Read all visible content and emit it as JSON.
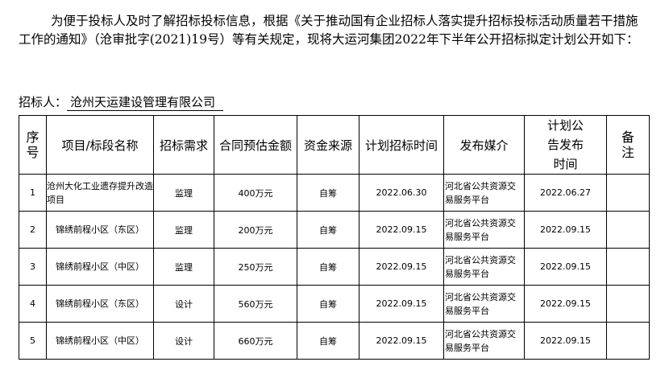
{
  "intro": "为便于投标人及时了解招标投标信息，根据《关于推动国有企业招标人落实提升招标投标活动质量若干措施工作的通知》（沧审批字(2021)19号）等有关规定，现将大运河集团2022年下半年公开招标拟定计划公开如下：",
  "tenderer": {
    "label": "招标人：",
    "value": "沧州天运建设管理有限公司"
  },
  "table": {
    "headers": [
      "序号",
      "项目/标段名称",
      "招标需求",
      "合同预估金额",
      "资金来源",
      "计划招标时间",
      "发布媒介",
      "计划公告发布时间",
      "备注"
    ],
    "rows": [
      {
        "no": "1",
        "name": "沧州大化工业遗存提升改造项目",
        "need": "监理",
        "amount": "400万元",
        "fund": "自筹",
        "plan": "2022.06.30",
        "media": "河北省公共资源交易服务平台",
        "notice": "2022.06.27",
        "remark": ""
      },
      {
        "no": "2",
        "name": "锦绣前程小区（东区）",
        "need": "监理",
        "amount": "200万元",
        "fund": "自筹",
        "plan": "2022.09.15",
        "media": "河北省公共资源交易服务平台",
        "notice": "2022.09.15",
        "remark": ""
      },
      {
        "no": "3",
        "name": "锦绣前程小区（中区）",
        "need": "监理",
        "amount": "250万元",
        "fund": "自筹",
        "plan": "2022.09.15",
        "media": "河北省公共资源交易服务平台",
        "notice": "2022.09.15",
        "remark": ""
      },
      {
        "no": "4",
        "name": "锦绣前程小区（东区）",
        "need": "设计",
        "amount": "560万元",
        "fund": "自筹",
        "plan": "2022.09.15",
        "media": "河北省公共资源交易服务平台",
        "notice": "2022.09.15",
        "remark": ""
      },
      {
        "no": "5",
        "name": "锦绣前程小区（中区）",
        "need": "设计",
        "amount": "660万元",
        "fund": "自筹",
        "plan": "2022.09.15",
        "media": "河北省公共资源交易服务平台",
        "notice": "2022.09.15",
        "remark": ""
      }
    ]
  }
}
